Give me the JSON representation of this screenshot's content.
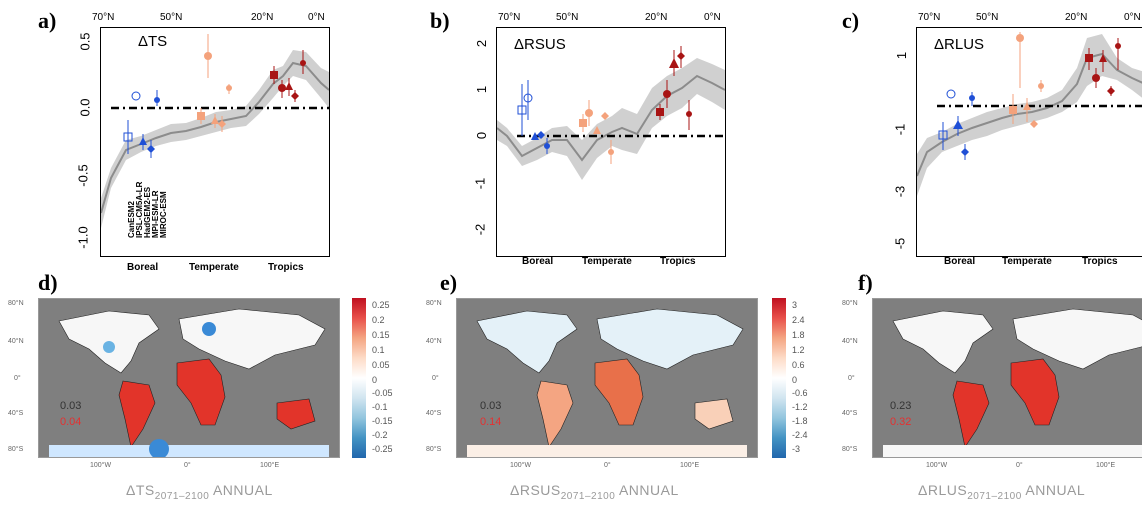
{
  "panels_top": [
    {
      "id": "a",
      "label": "a)",
      "var": "ΔTS",
      "yticks": [
        "0.5",
        "0.0",
        "-0.5",
        "-1.0"
      ],
      "lat_ticks": [
        "70°N",
        "50°N",
        "20°N",
        "0°N"
      ],
      "regions": [
        "Boreal",
        "Temperate",
        "Tropics"
      ],
      "models": [
        "CanESM2",
        "IPSL-CM5A-LR",
        "HadGEM2-ES",
        "MPI-ESM-LR",
        "MIROC-ESM"
      ]
    },
    {
      "id": "b",
      "label": "b)",
      "var": "ΔRSUS",
      "yticks": [
        "2",
        "1",
        "0",
        "-1",
        "-2"
      ],
      "lat_ticks": [
        "70°N",
        "50°N",
        "20°N",
        "0°N"
      ],
      "regions": [
        "Boreal",
        "Temperate",
        "Tropics"
      ]
    },
    {
      "id": "c",
      "label": "c)",
      "var": "ΔRLUS",
      "yticks": [
        "1",
        "-1",
        "-3",
        "-5"
      ],
      "lat_ticks": [
        "70°N",
        "50°N",
        "20°N",
        "0°N"
      ],
      "regions": [
        "Boreal",
        "Temperate",
        "Tropics"
      ]
    }
  ],
  "panels_map": [
    {
      "id": "d",
      "label": "d)",
      "var": "ΔTS",
      "period": "2071–2100",
      "season": "ANNUAL",
      "glob_black": "0.03",
      "glob_red": "0.04",
      "cbar": [
        "0.25",
        "0.2",
        "0.15",
        "0.1",
        "0.05",
        "0",
        "-0.05",
        "-0.1",
        "-0.15",
        "-0.2",
        "-0.25"
      ],
      "lat": [
        "80°N",
        "40°N",
        "0°",
        "40°S",
        "80°S"
      ],
      "lon": [
        "100°W",
        "0°",
        "100°E"
      ]
    },
    {
      "id": "e",
      "label": "e)",
      "var": "ΔRSUS",
      "period": "2071–2100",
      "season": "ANNUAL",
      "glob_black": "0.03",
      "glob_red": "0.14",
      "cbar": [
        "3",
        "2.4",
        "1.8",
        "1.2",
        "0.6",
        "0",
        "-0.6",
        "-1.2",
        "-1.8",
        "-2.4",
        "-3"
      ],
      "lat": [
        "80°N",
        "40°N",
        "0°",
        "40°S",
        "80°S"
      ],
      "lon": [
        "100°W",
        "0°",
        "100°E"
      ]
    },
    {
      "id": "f",
      "label": "f)",
      "var": "ΔRLUS",
      "period": "2071–2100",
      "season": "ANNUAL",
      "glob_black": "0.23",
      "glob_red": "0.32",
      "cbar": [],
      "lat": [
        "80°N",
        "40°N",
        "0°",
        "40°S",
        "80°S"
      ],
      "lon": [
        "100°W",
        "0°",
        "100°E"
      ]
    }
  ],
  "colors": {
    "boreal": "#1f4fd6",
    "temperate": "#f4a27c",
    "tropics": "#a81414",
    "line": "#8c8c8c",
    "band": "#d0d0d0",
    "ocean": "#7f7f7f"
  }
}
